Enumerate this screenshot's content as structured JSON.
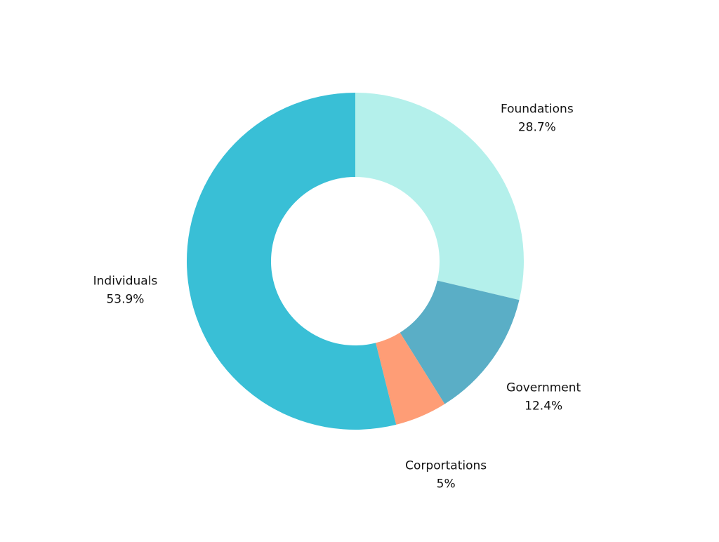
{
  "chart_data": {
    "type": "pie",
    "donut": true,
    "title": "",
    "categories": [
      "Foundations",
      "Government",
      "Corportations",
      "Individuals"
    ],
    "values": [
      28.7,
      12.4,
      5,
      53.9
    ],
    "value_labels": [
      "28.7%",
      "12.4%",
      "5%",
      "53.9%"
    ],
    "colors": [
      "#b4f0eb",
      "#5aaec6",
      "#fe9d76",
      "#39bfd6"
    ],
    "start": "top",
    "direction": "clockwise",
    "legend": "none"
  }
}
